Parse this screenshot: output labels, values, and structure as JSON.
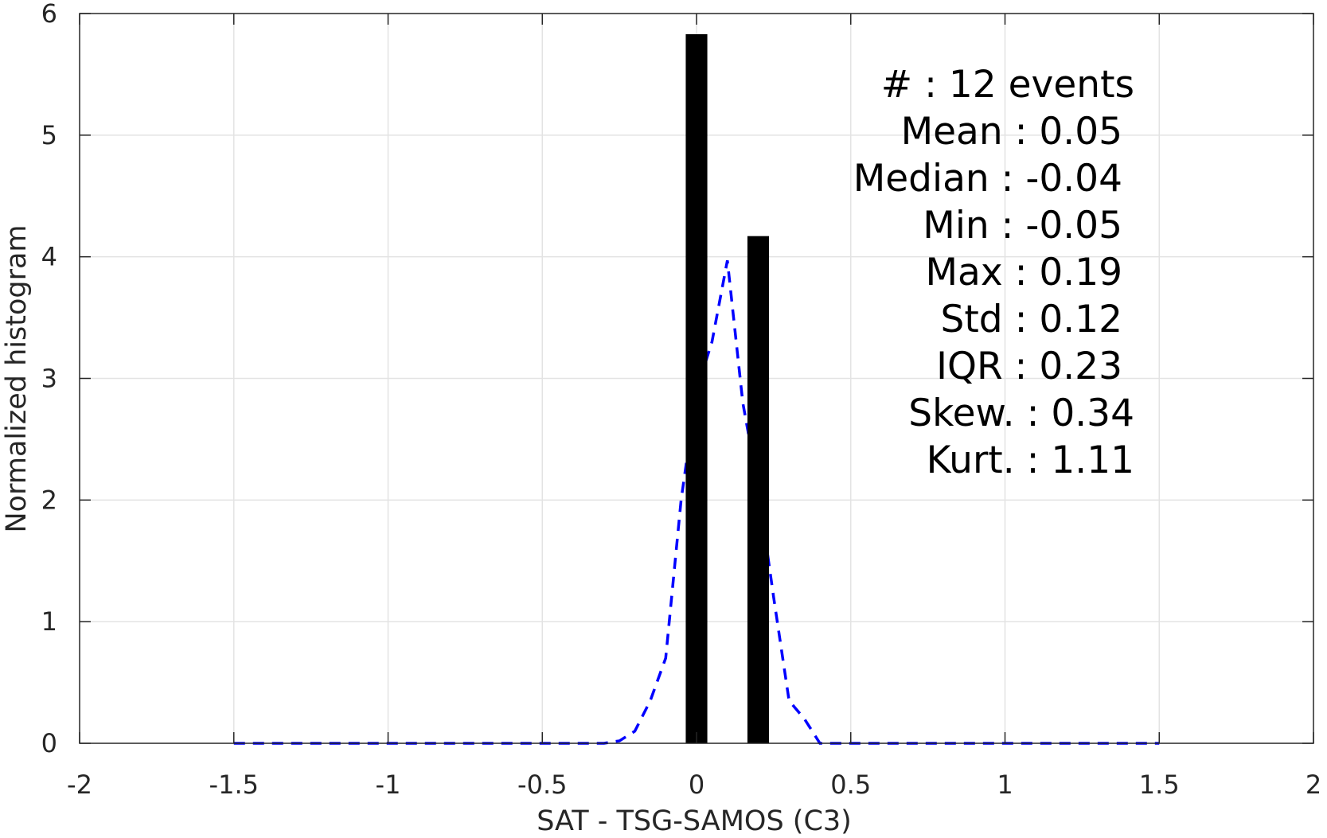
{
  "chart_data": {
    "type": "bar",
    "xlabel": "SAT - TSG-SAMOS (C3)",
    "ylabel": "Normalized histogram",
    "xlim": [
      -2,
      2
    ],
    "ylim": [
      0,
      6
    ],
    "xticks": [
      -2,
      -1.5,
      -1,
      -0.5,
      0,
      0.5,
      1,
      1.5,
      2
    ],
    "xtick_labels": [
      "-2",
      "-1.5",
      "-1",
      "-0.5",
      "0",
      "0.5",
      "1",
      "1.5",
      "2"
    ],
    "yticks": [
      0,
      1,
      2,
      3,
      4,
      5,
      6
    ],
    "ytick_labels": [
      "0",
      "1",
      "2",
      "3",
      "4",
      "5",
      "6"
    ],
    "grid": true,
    "bars": {
      "x": [
        0,
        0.2
      ],
      "values": [
        5.83,
        4.17
      ],
      "width": 0.07,
      "color": "#000000"
    },
    "curve": {
      "style": "dashed",
      "color": "#0000ff",
      "x": [
        -1.5,
        -0.3,
        -0.25,
        -0.2,
        -0.15,
        -0.1,
        -0.05,
        0,
        0.05,
        0.1,
        0.15,
        0.2,
        0.25,
        0.3,
        0.35,
        0.4,
        0.45,
        0.5,
        1.0,
        1.5
      ],
      "y": [
        0,
        0,
        0.02,
        0.1,
        0.35,
        0.7,
        2.0,
        2.9,
        3.3,
        3.97,
        2.8,
        2.1,
        1.2,
        0.35,
        0.2,
        0.0,
        0,
        0,
        0,
        0
      ]
    },
    "annotation": [
      "#  : 12 events",
      "Mean : 0.05",
      "Median : -0.04",
      "Min : -0.05",
      "Max : 0.19",
      "Std : 0.12",
      "IQR : 0.23",
      "Skew. : 0.34",
      "Kurt. : 1.11"
    ]
  }
}
